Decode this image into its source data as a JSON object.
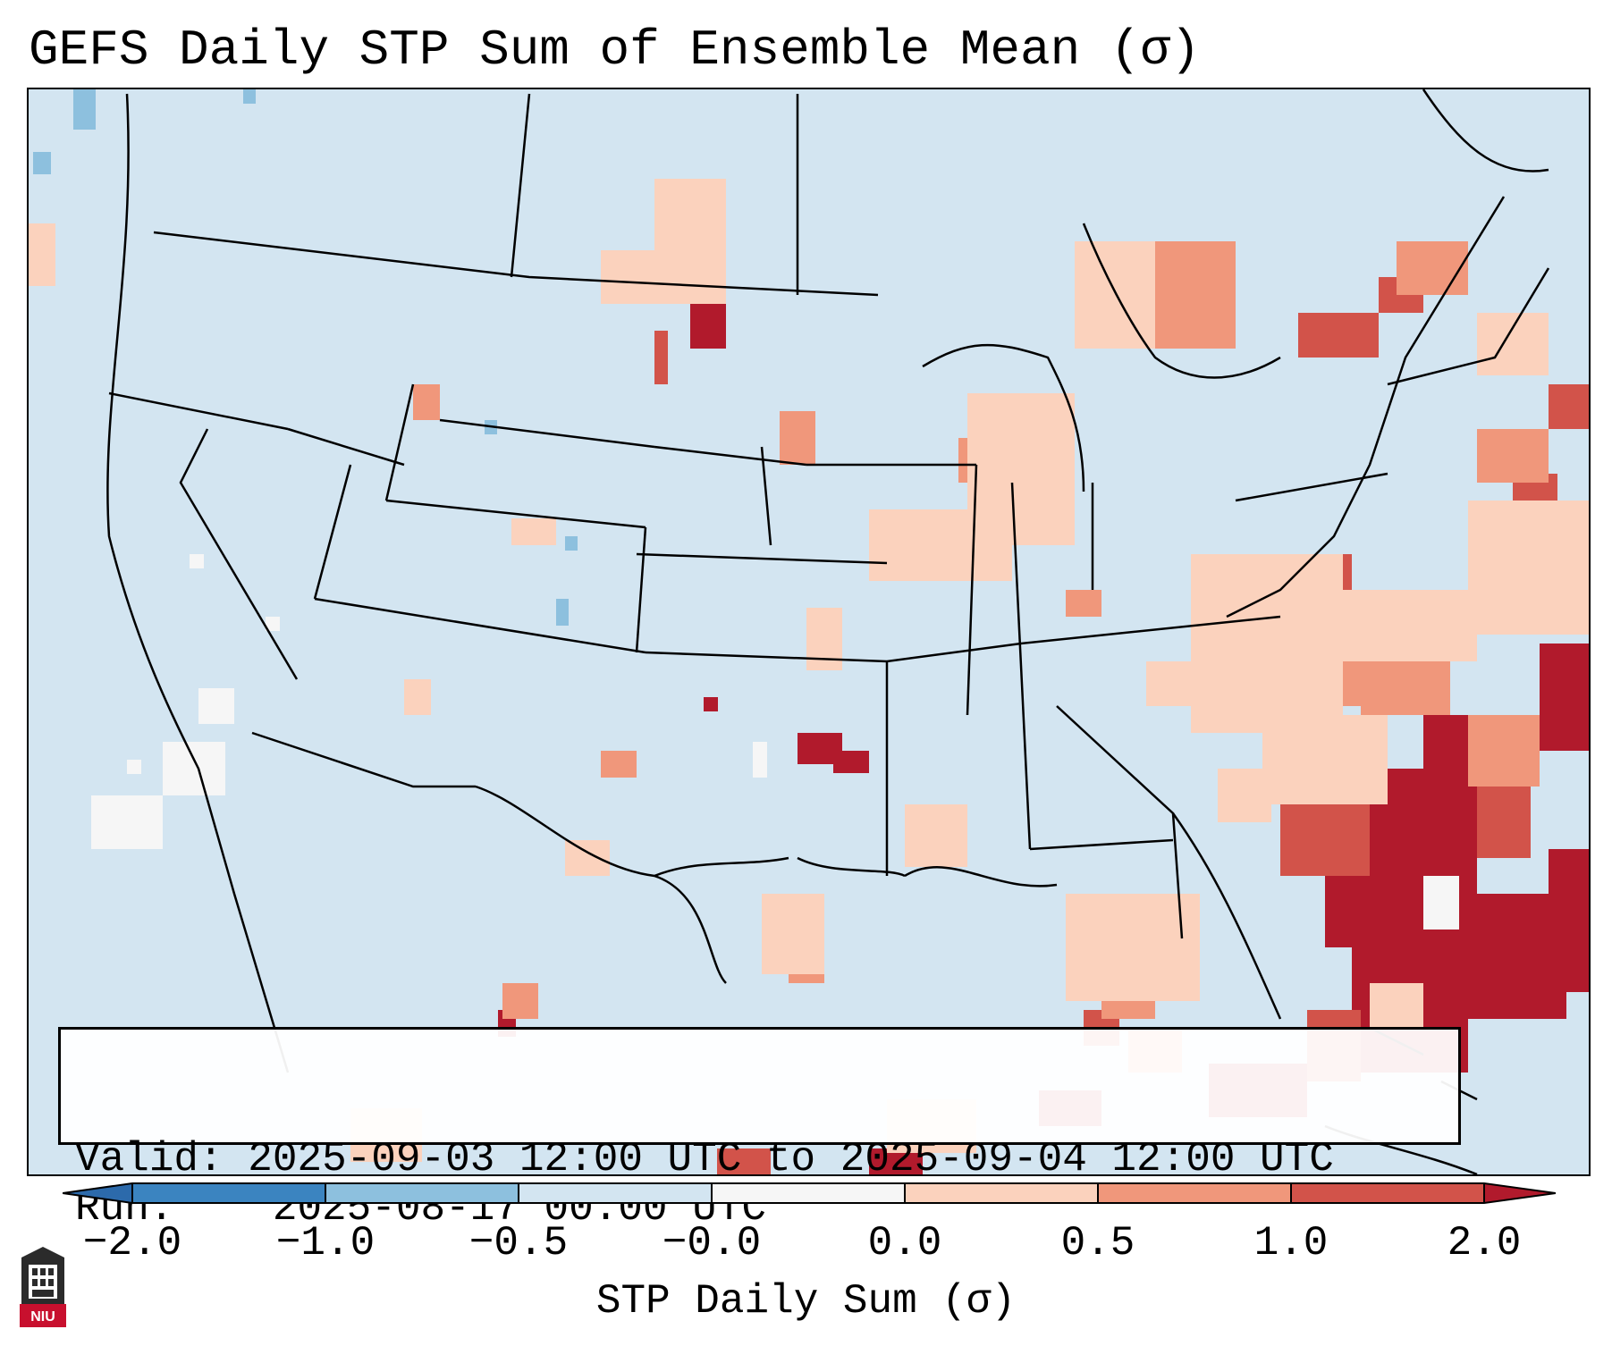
{
  "title": "GEFS Daily STP Sum of Ensemble Mean (σ)",
  "info": {
    "valid_label": "Valid:",
    "valid_value": "2025-09-03 12:00 UTC to 2025-09-04 12:00 UTC",
    "run_label": "Run:",
    "run_value": "2025-08-17 00:00 UTC"
  },
  "colorbar": {
    "label": "STP Daily Sum (σ)",
    "ticks": [
      "−2.0",
      "−1.0",
      "−0.5",
      "−0.0",
      "0.0",
      "0.5",
      "1.0",
      "2.0"
    ],
    "colors": [
      "#3b84c0",
      "#8dc0de",
      "#d3e5f1",
      "#f6f6f6",
      "#fbd2bd",
      "#f0977b",
      "#d2534a",
      "#b11a2c"
    ]
  },
  "map": {
    "region": "Contiguous United States",
    "background_color": "#d3e5f1",
    "hotspots": [
      {
        "area": "Southeast US Atlantic coast and western Atlantic",
        "level": "2.0"
      },
      {
        "area": "Florida and eastern Gulf of Mexico",
        "level": "1.0"
      },
      {
        "area": "Oklahoma",
        "level": "1.0"
      },
      {
        "area": "North Dakota / Saskatchewan border",
        "level": "1.0"
      },
      {
        "area": "Virginia and West Virginia",
        "level": "0.5"
      },
      {
        "area": "Ontario",
        "level": "1.0"
      }
    ]
  },
  "logo_text": "NIU"
}
